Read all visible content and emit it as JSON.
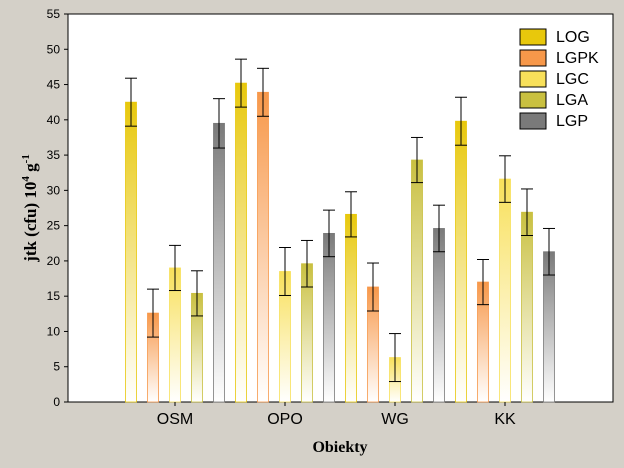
{
  "chart_data": {
    "type": "bar",
    "xlabel": "Obiekty",
    "ylabel": "jtk (cfu) 10",
    "ylabel_exp1": "4",
    "ylabel_mid": " g",
    "ylabel_exp2": "-1",
    "ylim": [
      0,
      55
    ],
    "yticks": [
      0,
      5,
      10,
      15,
      20,
      25,
      30,
      35,
      40,
      45,
      50,
      55
    ],
    "ytick_labels": [
      "0",
      "5",
      "10",
      "15",
      "20",
      "25",
      "30",
      "35",
      "40",
      "45",
      "50",
      "55"
    ],
    "categories": [
      "OSM",
      "OPO",
      "WG",
      "KK"
    ],
    "legend_position": "top-right",
    "series": [
      {
        "name": "LOG",
        "color": "#e8c80c",
        "values": [
          42.5,
          45.2,
          26.6,
          39.8
        ],
        "errors": [
          3.4,
          3.4,
          3.2,
          3.4
        ]
      },
      {
        "name": "LGPK",
        "color": "#f7984a",
        "values": [
          12.6,
          43.9,
          16.3,
          17.0
        ],
        "errors": [
          3.4,
          3.4,
          3.4,
          3.2
        ]
      },
      {
        "name": "LGC",
        "color": "#f8e05a",
        "values": [
          19.0,
          18.5,
          6.3,
          31.6
        ],
        "errors": [
          3.2,
          3.4,
          3.4,
          3.3
        ]
      },
      {
        "name": "LGA",
        "color": "#c9c040",
        "values": [
          15.4,
          19.6,
          34.3,
          26.9
        ],
        "errors": [
          3.2,
          3.3,
          3.2,
          3.3
        ]
      },
      {
        "name": "LGP",
        "color": "#7a7a7a",
        "values": [
          39.5,
          23.9,
          24.6,
          21.3
        ],
        "errors": [
          3.5,
          3.3,
          3.3,
          3.3
        ]
      }
    ]
  }
}
